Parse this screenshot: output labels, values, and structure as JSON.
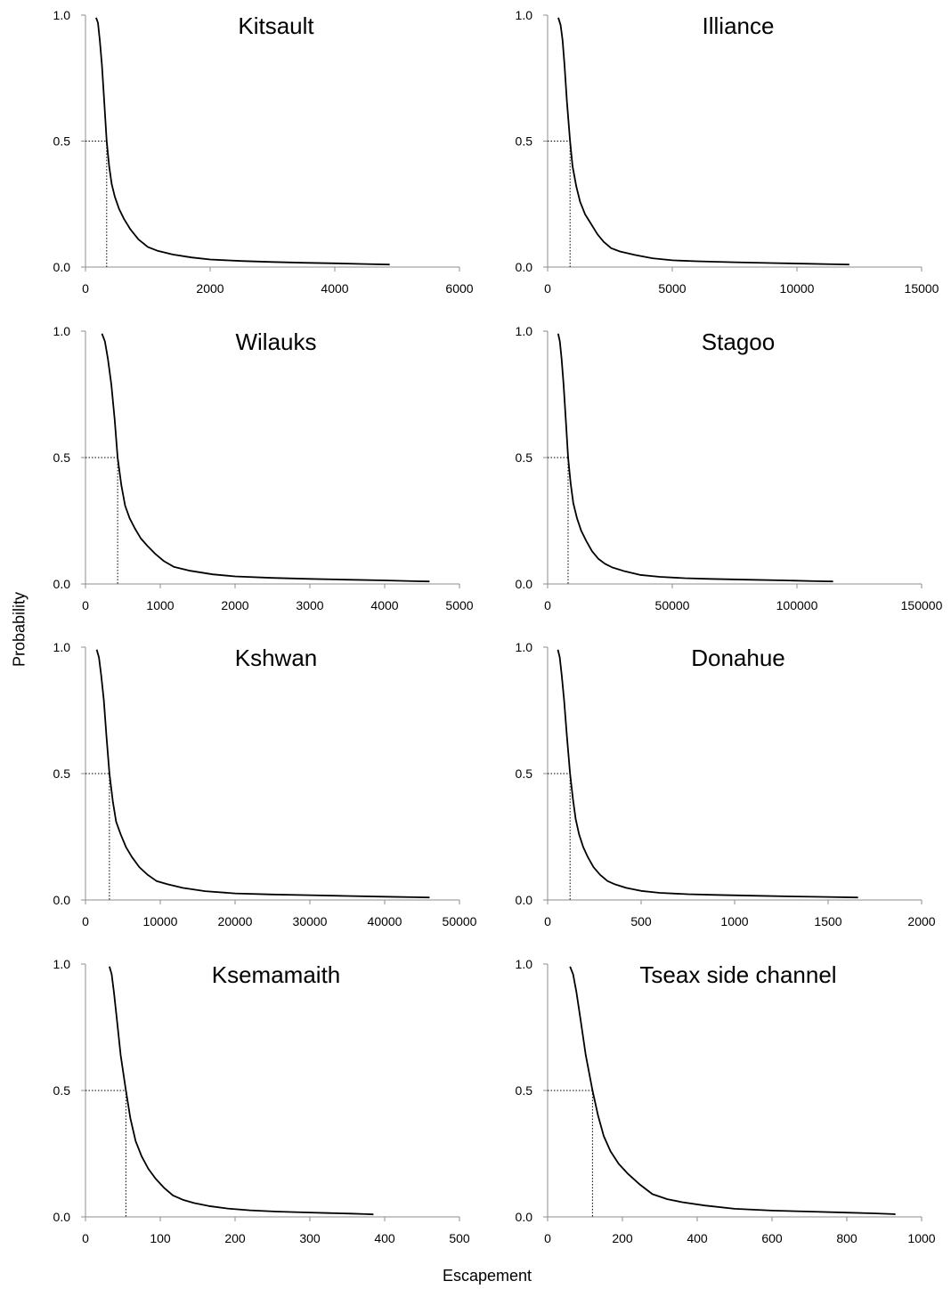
{
  "figure": {
    "ylabel": "Probability",
    "xlabel": "Escapement",
    "yticks": [
      "0.0",
      "0.5",
      "1.0"
    ]
  },
  "chart_data": [
    {
      "type": "line",
      "title": "Kitsault",
      "xlim": [
        0,
        6000
      ],
      "ylim": [
        0,
        1
      ],
      "xticks": [
        0,
        2000,
        4000,
        6000
      ],
      "grid": false,
      "median_escapement": 340,
      "series": [
        {
          "x": [
            170,
            200,
            230,
            265,
            300,
            340,
            380,
            420,
            470,
            540,
            620,
            720,
            850,
            1000,
            1150,
            1400,
            1700,
            2000,
            2500,
            3000,
            3500,
            4000,
            4500,
            4880
          ],
          "values": [
            0.99,
            0.97,
            0.9,
            0.8,
            0.66,
            0.5,
            0.4,
            0.33,
            0.28,
            0.23,
            0.19,
            0.15,
            0.11,
            0.08,
            0.065,
            0.05,
            0.038,
            0.03,
            0.024,
            0.02,
            0.017,
            0.015,
            0.012,
            0.01
          ]
        }
      ]
    },
    {
      "type": "line",
      "title": "Illiance",
      "xlim": [
        0,
        15000
      ],
      "ylim": [
        0,
        1
      ],
      "xticks": [
        0,
        5000,
        10000,
        15000
      ],
      "grid": false,
      "median_escapement": 900,
      "series": [
        {
          "x": [
            430,
            520,
            600,
            680,
            770,
            900,
            1000,
            1150,
            1300,
            1500,
            1750,
            2000,
            2250,
            2550,
            2900,
            3500,
            4200,
            5000,
            6000,
            7500,
            9000,
            10500,
            11500,
            12100
          ],
          "values": [
            0.99,
            0.96,
            0.9,
            0.8,
            0.66,
            0.5,
            0.4,
            0.32,
            0.26,
            0.21,
            0.17,
            0.13,
            0.1,
            0.075,
            0.062,
            0.048,
            0.035,
            0.027,
            0.023,
            0.019,
            0.016,
            0.013,
            0.011,
            0.01
          ]
        }
      ]
    },
    {
      "type": "line",
      "title": "Wilauks",
      "xlim": [
        0,
        5000
      ],
      "ylim": [
        0,
        1
      ],
      "xticks": [
        0,
        1000,
        2000,
        3000,
        4000,
        5000
      ],
      "grid": false,
      "median_escapement": 430,
      "series": [
        {
          "x": [
            220,
            260,
            300,
            345,
            390,
            430,
            480,
            530,
            590,
            660,
            740,
            830,
            930,
            1050,
            1180,
            1400,
            1700,
            2000,
            2500,
            3000,
            3500,
            4000,
            4400,
            4600
          ],
          "values": [
            0.99,
            0.96,
            0.89,
            0.79,
            0.65,
            0.5,
            0.39,
            0.31,
            0.26,
            0.22,
            0.18,
            0.15,
            0.12,
            0.09,
            0.068,
            0.052,
            0.038,
            0.03,
            0.024,
            0.02,
            0.017,
            0.014,
            0.011,
            0.01
          ]
        }
      ]
    },
    {
      "type": "line",
      "title": "Stagoo",
      "xlim": [
        0,
        150000
      ],
      "ylim": [
        0,
        1
      ],
      "xticks": [
        0,
        50000,
        100000,
        150000
      ],
      "grid": false,
      "median_escapement": 8200,
      "series": [
        {
          "x": [
            4200,
            4900,
            5600,
            6400,
            7300,
            8200,
            9200,
            10300,
            11800,
            13500,
            15500,
            17800,
            20300,
            23000,
            26000,
            31000,
            37000,
            45000,
            55000,
            65000,
            80000,
            95000,
            108000,
            114500
          ],
          "values": [
            0.99,
            0.96,
            0.89,
            0.79,
            0.65,
            0.5,
            0.4,
            0.32,
            0.26,
            0.21,
            0.17,
            0.13,
            0.1,
            0.08,
            0.065,
            0.05,
            0.036,
            0.028,
            0.023,
            0.02,
            0.017,
            0.014,
            0.011,
            0.01
          ]
        }
      ]
    },
    {
      "type": "line",
      "title": "Kshwan",
      "xlim": [
        0,
        50000
      ],
      "ylim": [
        0,
        1
      ],
      "xticks": [
        0,
        10000,
        20000,
        30000,
        40000,
        50000
      ],
      "grid": false,
      "median_escapement": 3200,
      "series": [
        {
          "x": [
            1500,
            1800,
            2100,
            2450,
            2800,
            3200,
            3650,
            4100,
            4700,
            5400,
            6200,
            7200,
            8300,
            9500,
            11000,
            13000,
            16000,
            20000,
            25000,
            30000,
            35000,
            40000,
            44000,
            46000
          ],
          "values": [
            0.99,
            0.96,
            0.89,
            0.79,
            0.65,
            0.5,
            0.39,
            0.31,
            0.26,
            0.21,
            0.17,
            0.13,
            0.1,
            0.075,
            0.062,
            0.048,
            0.035,
            0.026,
            0.022,
            0.019,
            0.016,
            0.013,
            0.011,
            0.01
          ]
        }
      ]
    },
    {
      "type": "line",
      "title": "Donahue",
      "xlim": [
        0,
        2000
      ],
      "ylim": [
        0,
        1
      ],
      "xticks": [
        0,
        500,
        1000,
        1500,
        2000
      ],
      "grid": false,
      "median_escapement": 120,
      "series": [
        {
          "x": [
            55,
            65,
            75,
            88,
            103,
            120,
            135,
            150,
            168,
            190,
            215,
            245,
            280,
            320,
            360,
            420,
            500,
            600,
            750,
            900,
            1100,
            1300,
            1500,
            1660
          ],
          "values": [
            0.99,
            0.96,
            0.89,
            0.79,
            0.65,
            0.5,
            0.4,
            0.32,
            0.26,
            0.21,
            0.17,
            0.13,
            0.1,
            0.075,
            0.062,
            0.048,
            0.036,
            0.028,
            0.023,
            0.02,
            0.017,
            0.014,
            0.012,
            0.01
          ]
        }
      ]
    },
    {
      "type": "line",
      "title": "Ksemamaith",
      "xlim": [
        0,
        500
      ],
      "ylim": [
        0,
        1
      ],
      "xticks": [
        0,
        100,
        200,
        300,
        400,
        500
      ],
      "grid": false,
      "median_escapement": 54,
      "series": [
        {
          "x": [
            32,
            35,
            38,
            42,
            47,
            54,
            60,
            67,
            75,
            84,
            94,
            105,
            117,
            130,
            145,
            165,
            190,
            220,
            255,
            290,
            325,
            355,
            375,
            385
          ],
          "values": [
            0.99,
            0.96,
            0.89,
            0.78,
            0.64,
            0.5,
            0.39,
            0.3,
            0.24,
            0.19,
            0.15,
            0.115,
            0.085,
            0.068,
            0.055,
            0.043,
            0.033,
            0.026,
            0.021,
            0.018,
            0.015,
            0.013,
            0.011,
            0.01
          ]
        }
      ]
    },
    {
      "type": "line",
      "title": "Tseax side channel",
      "xlim": [
        0,
        1000
      ],
      "ylim": [
        0,
        1
      ],
      "xticks": [
        0,
        200,
        400,
        600,
        800,
        1000
      ],
      "grid": false,
      "median_escapement": 120,
      "series": [
        {
          "x": [
            60,
            68,
            77,
            88,
            102,
            120,
            135,
            150,
            168,
            190,
            215,
            245,
            280,
            320,
            360,
            420,
            500,
            600,
            700,
            800,
            870,
            910,
            925,
            930
          ],
          "values": [
            0.99,
            0.96,
            0.89,
            0.78,
            0.64,
            0.5,
            0.4,
            0.32,
            0.26,
            0.21,
            0.17,
            0.13,
            0.09,
            0.07,
            0.058,
            0.045,
            0.032,
            0.025,
            0.021,
            0.017,
            0.014,
            0.012,
            0.011,
            0.01
          ]
        }
      ]
    }
  ]
}
